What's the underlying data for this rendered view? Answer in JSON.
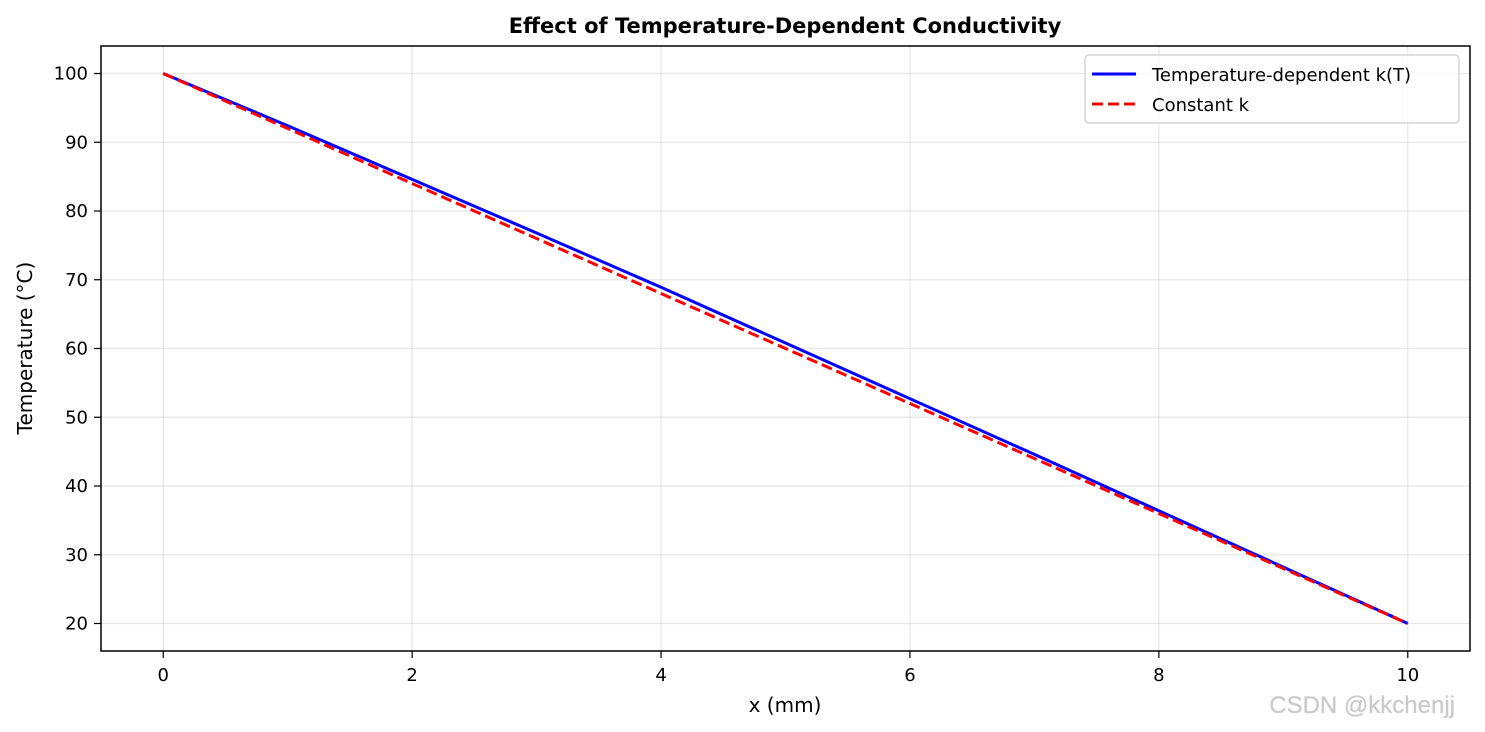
{
  "chart_data": {
    "type": "line",
    "title": "Effect of Temperature-Dependent Conductivity",
    "xlabel": "x (mm)",
    "ylabel": "Temperature (°C)",
    "xlim": [
      -0.5,
      10.5
    ],
    "ylim": [
      16,
      104
    ],
    "xticks": [
      0,
      2,
      4,
      6,
      8,
      10
    ],
    "yticks": [
      20,
      30,
      40,
      50,
      60,
      70,
      80,
      90,
      100
    ],
    "grid": true,
    "legend_position": "top-right",
    "series": [
      {
        "name": "Temperature-dependent k(T)",
        "color": "#0000ff",
        "style": "solid",
        "x": [
          0,
          1,
          2,
          3,
          4,
          5,
          6,
          7,
          8,
          9,
          10
        ],
        "y": [
          100,
          92.4,
          84.6,
          76.8,
          68.9,
          60.8,
          52.7,
          44.6,
          36.4,
          28.2,
          20
        ]
      },
      {
        "name": "Constant k",
        "color": "#ff0000",
        "style": "dashed",
        "x": [
          0,
          1,
          2,
          3,
          4,
          5,
          6,
          7,
          8,
          9,
          10
        ],
        "y": [
          100,
          92,
          84,
          76,
          68,
          60,
          52,
          44,
          36,
          28,
          20
        ]
      }
    ]
  },
  "watermark": "CSDN @kkchenjj"
}
